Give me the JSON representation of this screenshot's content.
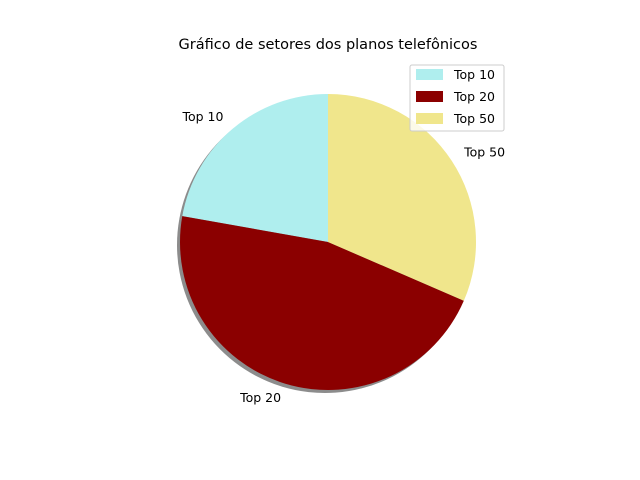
{
  "chart_data": {
    "type": "pie",
    "title": "Gráfico de setores dos planos telefônicos",
    "categories": [
      "Top 10",
      "Top 20",
      "Top 50"
    ],
    "values": [
      22.2,
      46.3,
      31.5
    ],
    "colors": [
      "#afeeee",
      "#8b0000",
      "#f0e68c"
    ],
    "start_angle_deg": 90,
    "direction": "counterclockwise",
    "shadow": true,
    "legend": {
      "placement": "top-right",
      "entries": [
        "Top 10",
        "Top 20",
        "Top 50"
      ]
    }
  }
}
